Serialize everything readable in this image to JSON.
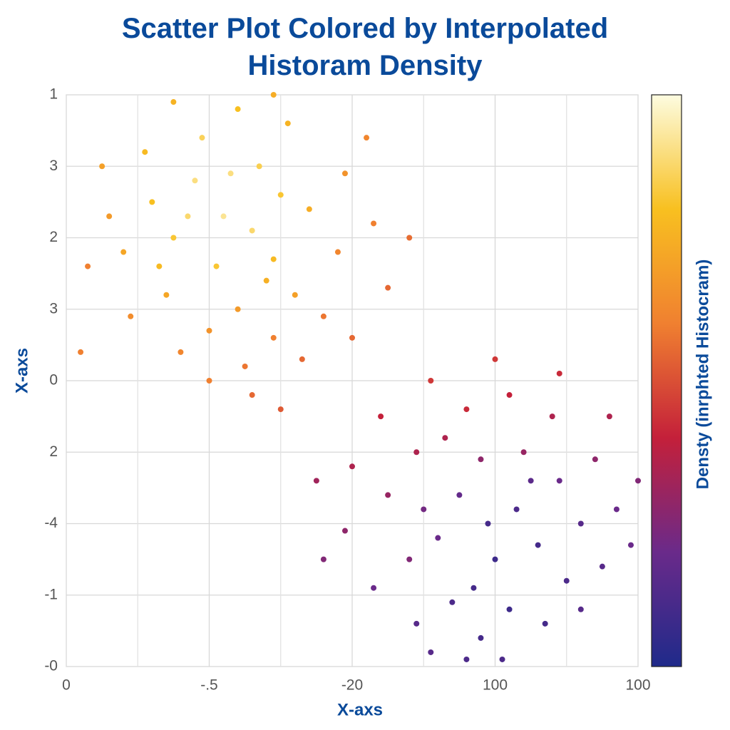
{
  "chart_data": {
    "type": "scatter",
    "title": "Scatter Plot Colored by Interpolated Historam Density",
    "x_label": "X-axs",
    "y_label": "X-axs",
    "colorbar_label": "Densty (inrphted Histocram)",
    "xlim": [
      0,
      8
    ],
    "ylim": [
      0,
      8
    ],
    "clim": [
      0,
      1
    ],
    "xticks": [
      {
        "value": 0,
        "label": "0"
      },
      {
        "value": 2,
        "label": "-.5"
      },
      {
        "value": 4,
        "label": "-20"
      },
      {
        "value": 6,
        "label": "100"
      },
      {
        "value": 8,
        "label": "100"
      }
    ],
    "minor_xticks": [
      1,
      3,
      5,
      7
    ],
    "yticks": [
      {
        "value": 8,
        "label": "1"
      },
      {
        "value": 7,
        "label": "3"
      },
      {
        "value": 6,
        "label": "2"
      },
      {
        "value": 5,
        "label": "3"
      },
      {
        "value": 4,
        "label": "0"
      },
      {
        "value": 3,
        "label": "2"
      },
      {
        "value": 2,
        "label": "-4"
      },
      {
        "value": 1,
        "label": "-1"
      },
      {
        "value": 0,
        "label": "-0"
      }
    ],
    "grid": true,
    "colormap": [
      "#1f2a8a",
      "#6a2a8a",
      "#c4203a",
      "#f08030",
      "#f8c020",
      "#fdfce0"
    ],
    "x": [
      2.2,
      1.8,
      2.6,
      1.5,
      2.9,
      3.2,
      2.4,
      1.2,
      0.8,
      1.9,
      2.7,
      3.4,
      3.8,
      3.6,
      2.9,
      2.0,
      1.4,
      0.6,
      1.1,
      2.4,
      3.1,
      3.9,
      4.3,
      4.5,
      3.3,
      2.5,
      1.6,
      0.9,
      0.3,
      0.5,
      1.5,
      2.9,
      4.2,
      4.8,
      2.1,
      2.8,
      1.7,
      3.0,
      2.3,
      1.3,
      2.6,
      3.0,
      2.0,
      4.0,
      0.2,
      5.9,
      5.5,
      6.3,
      6.0,
      5.2,
      6.6,
      5.8,
      5.3,
      6.4,
      6.9,
      7.2,
      7.0,
      6.2,
      5.4,
      4.8,
      4.5,
      4.9,
      5.6,
      6.2,
      6.8,
      7.4,
      7.7,
      7.5,
      6.7,
      5.8,
      4.9,
      4.3,
      3.9,
      4.0,
      4.4,
      5.1,
      6.0,
      6.9,
      7.6,
      8.0,
      7.9,
      7.2,
      6.1,
      5.1,
      3.6,
      3.5,
      5.7,
      6.5,
      5.0,
      5.6
    ],
    "y": [
      6.3,
      6.8,
      6.1,
      6.0,
      5.7,
      5.2,
      5.0,
      6.5,
      5.8,
      7.4,
      7.0,
      6.4,
      5.8,
      4.9,
      4.6,
      4.7,
      5.2,
      6.3,
      7.2,
      7.8,
      7.6,
      6.9,
      6.2,
      5.3,
      4.3,
      4.2,
      4.4,
      4.9,
      5.6,
      7.0,
      7.9,
      8.0,
      7.4,
      6.0,
      5.6,
      5.4,
      6.3,
      6.6,
      6.9,
      5.6,
      3.8,
      3.6,
      4.0,
      4.6,
      4.4,
      2.0,
      2.4,
      2.2,
      1.5,
      1.8,
      1.7,
      2.9,
      3.2,
      3.0,
      2.6,
      2.0,
      1.2,
      0.8,
      0.9,
      1.5,
      2.4,
      3.0,
      3.6,
      3.8,
      3.5,
      2.9,
      2.2,
      1.4,
      0.6,
      0.4,
      0.6,
      1.1,
      1.9,
      2.8,
      3.5,
      4.0,
      4.3,
      4.1,
      3.5,
      2.6,
      1.7,
      0.8,
      0.1,
      0.2,
      1.5,
      2.6,
      1.1,
      2.6,
      2.2,
      0.1
    ],
    "density": [
      0.92,
      0.9,
      0.88,
      0.82,
      0.78,
      0.7,
      0.68,
      0.8,
      0.72,
      0.86,
      0.85,
      0.74,
      0.62,
      0.58,
      0.6,
      0.66,
      0.72,
      0.68,
      0.78,
      0.8,
      0.76,
      0.66,
      0.6,
      0.55,
      0.55,
      0.58,
      0.62,
      0.64,
      0.6,
      0.7,
      0.76,
      0.74,
      0.62,
      0.56,
      0.82,
      0.75,
      0.88,
      0.82,
      0.9,
      0.78,
      0.55,
      0.52,
      0.6,
      0.55,
      0.6,
      0.1,
      0.18,
      0.12,
      0.08,
      0.2,
      0.1,
      0.28,
      0.35,
      0.3,
      0.2,
      0.15,
      0.12,
      0.08,
      0.12,
      0.25,
      0.3,
      0.35,
      0.42,
      0.4,
      0.35,
      0.28,
      0.2,
      0.15,
      0.1,
      0.1,
      0.15,
      0.2,
      0.28,
      0.35,
      0.4,
      0.45,
      0.45,
      0.42,
      0.35,
      0.25,
      0.2,
      0.15,
      0.12,
      0.15,
      0.25,
      0.32,
      0.1,
      0.16,
      0.22,
      0.12
    ]
  }
}
